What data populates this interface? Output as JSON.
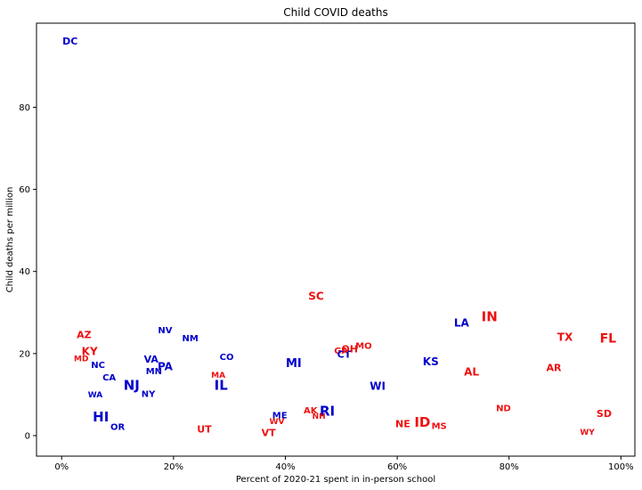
{
  "chart_data": {
    "type": "scatter",
    "title": "Child COVID deaths",
    "xlabel": "Percent of 2020-21 spent in in-person school",
    "ylabel": "Child deaths per million",
    "xlim": [
      -0.045,
      1.025
    ],
    "ylim": [
      -5,
      100.5
    ],
    "x_ticks": [
      0,
      0.2,
      0.4,
      0.6,
      0.8,
      1.0
    ],
    "x_tick_labels": [
      "0%",
      "20%",
      "40%",
      "60%",
      "80%",
      "100%"
    ],
    "y_ticks": [
      0,
      20,
      40,
      60,
      80
    ],
    "y_tick_labels": [
      "0",
      "20",
      "40",
      "60",
      "80"
    ],
    "grid": false,
    "colors": {
      "blue": "#0000cc",
      "red": "#ee1111"
    },
    "points": [
      {
        "label": "DC",
        "x": 0.015,
        "y": 96,
        "color": "blue",
        "size": 11
      },
      {
        "label": "AZ",
        "x": 0.04,
        "y": 24.5,
        "color": "red",
        "size": 11
      },
      {
        "label": "KY",
        "x": 0.05,
        "y": 20.5,
        "color": "red",
        "size": 12
      },
      {
        "label": "MD",
        "x": 0.035,
        "y": 18.5,
        "color": "red",
        "size": 9
      },
      {
        "label": "NC",
        "x": 0.065,
        "y": 17,
        "color": "blue",
        "size": 10
      },
      {
        "label": "CA",
        "x": 0.085,
        "y": 14,
        "color": "blue",
        "size": 10
      },
      {
        "label": "WA",
        "x": 0.06,
        "y": 9.8,
        "color": "blue",
        "size": 9
      },
      {
        "label": "HI",
        "x": 0.07,
        "y": 4.5,
        "color": "blue",
        "size": 15
      },
      {
        "label": "OR",
        "x": 0.1,
        "y": 2,
        "color": "blue",
        "size": 10
      },
      {
        "label": "NJ",
        "x": 0.125,
        "y": 12.3,
        "color": "blue",
        "size": 15
      },
      {
        "label": "VA",
        "x": 0.16,
        "y": 18.5,
        "color": "blue",
        "size": 11
      },
      {
        "label": "MN",
        "x": 0.165,
        "y": 15.5,
        "color": "blue",
        "size": 10
      },
      {
        "label": "NY",
        "x": 0.155,
        "y": 10,
        "color": "blue",
        "size": 10
      },
      {
        "label": "PA",
        "x": 0.185,
        "y": 16.8,
        "color": "blue",
        "size": 12
      },
      {
        "label": "NV",
        "x": 0.185,
        "y": 25.5,
        "color": "blue",
        "size": 10
      },
      {
        "label": "NM",
        "x": 0.23,
        "y": 23.5,
        "color": "blue",
        "size": 10
      },
      {
        "label": "CO",
        "x": 0.295,
        "y": 19,
        "color": "blue",
        "size": 10
      },
      {
        "label": "MA",
        "x": 0.28,
        "y": 14.5,
        "color": "red",
        "size": 9
      },
      {
        "label": "IL",
        "x": 0.285,
        "y": 12.3,
        "color": "blue",
        "size": 15
      },
      {
        "label": "UT",
        "x": 0.255,
        "y": 1.5,
        "color": "red",
        "size": 11
      },
      {
        "label": "MI",
        "x": 0.415,
        "y": 17.5,
        "color": "blue",
        "size": 13
      },
      {
        "label": "ME",
        "x": 0.39,
        "y": 4.8,
        "color": "blue",
        "size": 10
      },
      {
        "label": "WV",
        "x": 0.385,
        "y": 3.3,
        "color": "red",
        "size": 9
      },
      {
        "label": "VT",
        "x": 0.37,
        "y": 0.6,
        "color": "red",
        "size": 11
      },
      {
        "label": "AK",
        "x": 0.445,
        "y": 6,
        "color": "red",
        "size": 10
      },
      {
        "label": "RI",
        "x": 0.475,
        "y": 6,
        "color": "blue",
        "size": 15
      },
      {
        "label": "NH",
        "x": 0.46,
        "y": 4.5,
        "color": "red",
        "size": 9
      },
      {
        "label": "SC",
        "x": 0.455,
        "y": 34,
        "color": "red",
        "size": 12
      },
      {
        "label": "GA",
        "x": 0.5,
        "y": 20.5,
        "color": "red",
        "size": 10
      },
      {
        "label": "CT",
        "x": 0.505,
        "y": 19.8,
        "color": "blue",
        "size": 11
      },
      {
        "label": "OH",
        "x": 0.515,
        "y": 21,
        "color": "red",
        "size": 11
      },
      {
        "label": "MO",
        "x": 0.54,
        "y": 21.7,
        "color": "red",
        "size": 10
      },
      {
        "label": "WI",
        "x": 0.565,
        "y": 12,
        "color": "blue",
        "size": 12
      },
      {
        "label": "NE",
        "x": 0.61,
        "y": 2.8,
        "color": "red",
        "size": 11
      },
      {
        "label": "ID",
        "x": 0.645,
        "y": 3.2,
        "color": "red",
        "size": 15
      },
      {
        "label": "MS",
        "x": 0.675,
        "y": 2.2,
        "color": "red",
        "size": 10
      },
      {
        "label": "KS",
        "x": 0.66,
        "y": 18,
        "color": "blue",
        "size": 12
      },
      {
        "label": "LA",
        "x": 0.715,
        "y": 27.5,
        "color": "blue",
        "size": 12
      },
      {
        "label": "AL",
        "x": 0.733,
        "y": 15.5,
        "color": "red",
        "size": 12
      },
      {
        "label": "IN",
        "x": 0.765,
        "y": 29,
        "color": "red",
        "size": 15
      },
      {
        "label": "ND",
        "x": 0.79,
        "y": 6.5,
        "color": "red",
        "size": 10
      },
      {
        "label": "AR",
        "x": 0.88,
        "y": 16.5,
        "color": "red",
        "size": 11
      },
      {
        "label": "TX",
        "x": 0.9,
        "y": 24,
        "color": "red",
        "size": 12
      },
      {
        "label": "FL",
        "x": 0.977,
        "y": 23.5,
        "color": "red",
        "size": 14
      },
      {
        "label": "SD",
        "x": 0.97,
        "y": 5.3,
        "color": "red",
        "size": 11
      },
      {
        "label": "WY",
        "x": 0.94,
        "y": 0.6,
        "color": "red",
        "size": 9
      }
    ]
  }
}
